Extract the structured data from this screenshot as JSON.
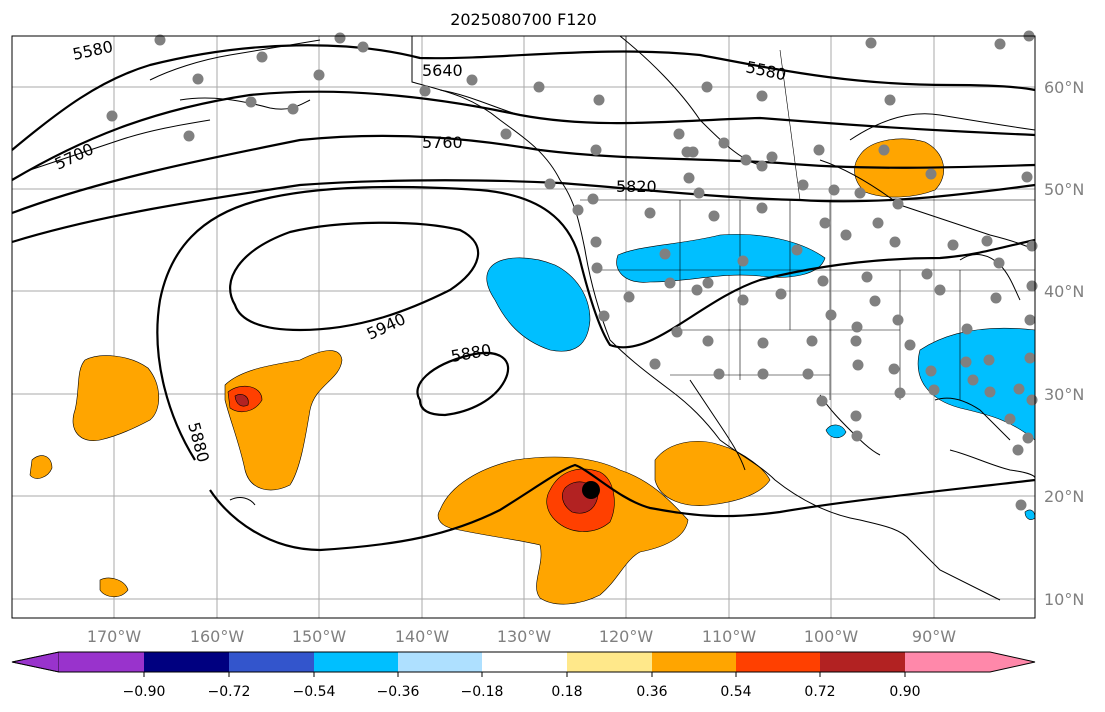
{
  "title": "2025080700 F120",
  "map": {
    "lat_labels": [
      "60°N",
      "50°N",
      "40°N",
      "30°N",
      "20°N",
      "10°N"
    ],
    "lon_labels": [
      "170°W",
      "160°W",
      "150°W",
      "140°W",
      "130°W",
      "120°W",
      "110°W",
      "100°W",
      "90°W"
    ],
    "contour_labels": [
      "5580",
      "5640",
      "5580",
      "5700",
      "5760",
      "5820",
      "5940",
      "5880",
      "5880"
    ],
    "marker_color": "#000000",
    "station_color": "#808080"
  },
  "colorbar": {
    "colors": [
      "#9933cc",
      "#000080",
      "#3355cc",
      "#00bfff",
      "#aee0ff",
      "#ffffff",
      "#ffe88a",
      "#ffa500",
      "#ff4000",
      "#b22222",
      "#ff88aa"
    ],
    "tick_labels": [
      "−0.90",
      "−0.72",
      "−0.54",
      "−0.36",
      "−0.18",
      "0.18",
      "0.36",
      "0.54",
      "0.72",
      "0.90"
    ]
  }
}
